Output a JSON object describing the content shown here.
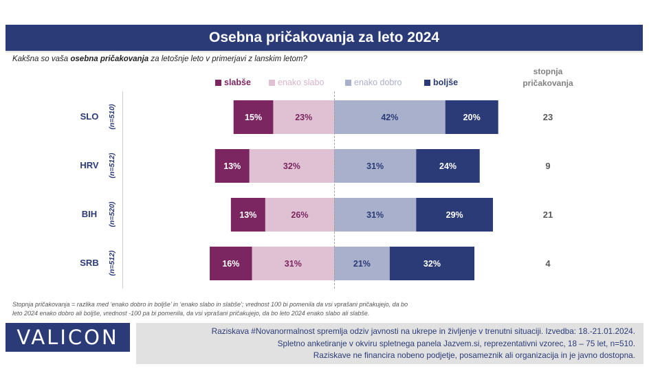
{
  "title": "Osebna pričakovanja za leto 2024",
  "question": {
    "prefix": "Kakšna so vaša ",
    "bold": "osebna pričakovanja",
    "suffix": " za letošnje leto v primerjavi z lanskim letom?"
  },
  "side_header": "stopnja pričakovanja",
  "colors": {
    "slabse": "#7b2660",
    "enako_slabo": "#dfc1d3",
    "enako_dobro": "#a8b0cb",
    "boljse": "#2a3b77",
    "title_bg": "#2a3b77"
  },
  "chart_data": {
    "type": "bar",
    "orientation": "horizontal-diverging",
    "categories": [
      "SLO",
      "HRV",
      "BIH",
      "SRB"
    ],
    "sample_sizes": [
      "(n=510)",
      "(n=512)",
      "(n=520)",
      "(n=512)"
    ],
    "series": [
      {
        "name": "slabše",
        "values": [
          15,
          13,
          13,
          16
        ],
        "side": "negative"
      },
      {
        "name": "enako slabo",
        "values": [
          23,
          32,
          26,
          31
        ],
        "side": "negative"
      },
      {
        "name": "enako dobro",
        "values": [
          42,
          31,
          31,
          21
        ],
        "side": "positive"
      },
      {
        "name": "boljše",
        "values": [
          20,
          24,
          29,
          32
        ],
        "side": "positive"
      }
    ],
    "expectation_index": [
      23,
      9,
      21,
      4
    ]
  },
  "footnote": [
    "Stopnja pričakovanja = razlika med ‘enako dobro in boljše’ in ‘enako slabo in slabše’; vrednost 100 bi pomenila da vsi vprašani pričakujejo, da bo",
    "leto 2024 enako dobro ali boljše, vrednost -100 pa bi pomenila, da vsi vprašani pričakujejo, da bo leto 2024 enako slabo ali slabše."
  ],
  "logo_text": "VALICON",
  "info_lines": [
    "Raziskava #Novanormalnost spremlja odziv javnosti na ukrepe in življenje v trenutni situaciji. Izvedba: 18.-21.01.2024.",
    "Spletno anketiranje v okviru spletnega panela Jazvem.si, reprezentativni vzorec, 18 – 75 let, n=510.",
    "Raziskave ne financira nobeno podjetje, posameznik ali organizacija in je javno dostopna."
  ]
}
